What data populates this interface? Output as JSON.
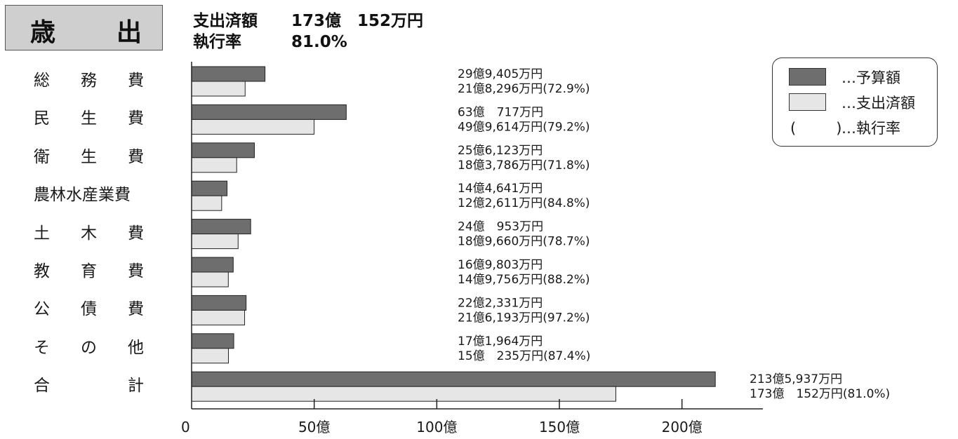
{
  "title": {
    "char1": "歳",
    "char2": "出"
  },
  "summary": {
    "spent_label": "支出済額",
    "spent_value": "173億　152万円",
    "rate_label": "執行率",
    "rate_value": "81.0%"
  },
  "legend": {
    "budget": "…予算額",
    "spent": "…支出済額",
    "rate_paren": "(　)",
    "rate": "…執行率"
  },
  "colors": {
    "budget": "#6e6e6e",
    "spent": "#e6e6e6",
    "outline": "#222222",
    "title_bg": "#cfcfcf"
  },
  "chart_data": {
    "type": "bar",
    "orientation": "horizontal",
    "unit": "億円",
    "xlim": [
      0,
      233
    ],
    "x_ticks": [
      {
        "value": 0,
        "label": "0"
      },
      {
        "value": 50,
        "label": "50億"
      },
      {
        "value": 100,
        "label": "100億"
      },
      {
        "value": 150,
        "label": "150億"
      },
      {
        "value": 200,
        "label": "200億"
      }
    ],
    "categories": [
      {
        "label": "総務費",
        "chars": [
          "総",
          "務",
          "費"
        ],
        "budget": 29.9405,
        "spent": 21.8296,
        "budget_text": "29億9,405万円",
        "spent_text": "21億8,296万円(72.9%)"
      },
      {
        "label": "民生費",
        "chars": [
          "民",
          "生",
          "費"
        ],
        "budget": 63.0717,
        "spent": 49.9614,
        "budget_text": "63億　717万円",
        "spent_text": "49億9,614万円(79.2%)"
      },
      {
        "label": "衛生費",
        "chars": [
          "衛",
          "生",
          "費"
        ],
        "budget": 25.6123,
        "spent": 18.3786,
        "budget_text": "25億6,123万円",
        "spent_text": "18億3,786万円(71.8%)"
      },
      {
        "label": "農林水産業費",
        "chars": [],
        "budget": 14.4641,
        "spent": 12.2611,
        "budget_text": "14億4,641万円",
        "spent_text": "12億2,611万円(84.8%)"
      },
      {
        "label": "土木費",
        "chars": [
          "土",
          "木",
          "費"
        ],
        "budget": 24.0953,
        "spent": 18.966,
        "budget_text": "24億　953万円",
        "spent_text": "18億9,660万円(78.7%)"
      },
      {
        "label": "教育費",
        "chars": [
          "教",
          "育",
          "費"
        ],
        "budget": 16.9803,
        "spent": 14.9756,
        "budget_text": "16億9,803万円",
        "spent_text": "14億9,756万円(88.2%)"
      },
      {
        "label": "公債費",
        "chars": [
          "公",
          "債",
          "費"
        ],
        "budget": 22.2331,
        "spent": 21.6193,
        "budget_text": "22億2,331万円",
        "spent_text": "21億6,193万円(97.2%)"
      },
      {
        "label": "その他",
        "chars": [
          "そ",
          "の",
          "他"
        ],
        "budget": 17.1964,
        "spent": 15.0235,
        "budget_text": "17億1,964万円",
        "spent_text": "15億　235万円(87.4%)"
      },
      {
        "label": "合計",
        "chars": [
          "合",
          "",
          "計"
        ],
        "budget": 213.5937,
        "spent": 173.0152,
        "budget_text": "213億5,937万円",
        "spent_text": "173億　152万円(81.0%)"
      }
    ],
    "series": [
      {
        "name": "予算額",
        "key": "budget"
      },
      {
        "name": "支出済額",
        "key": "spent"
      }
    ]
  }
}
